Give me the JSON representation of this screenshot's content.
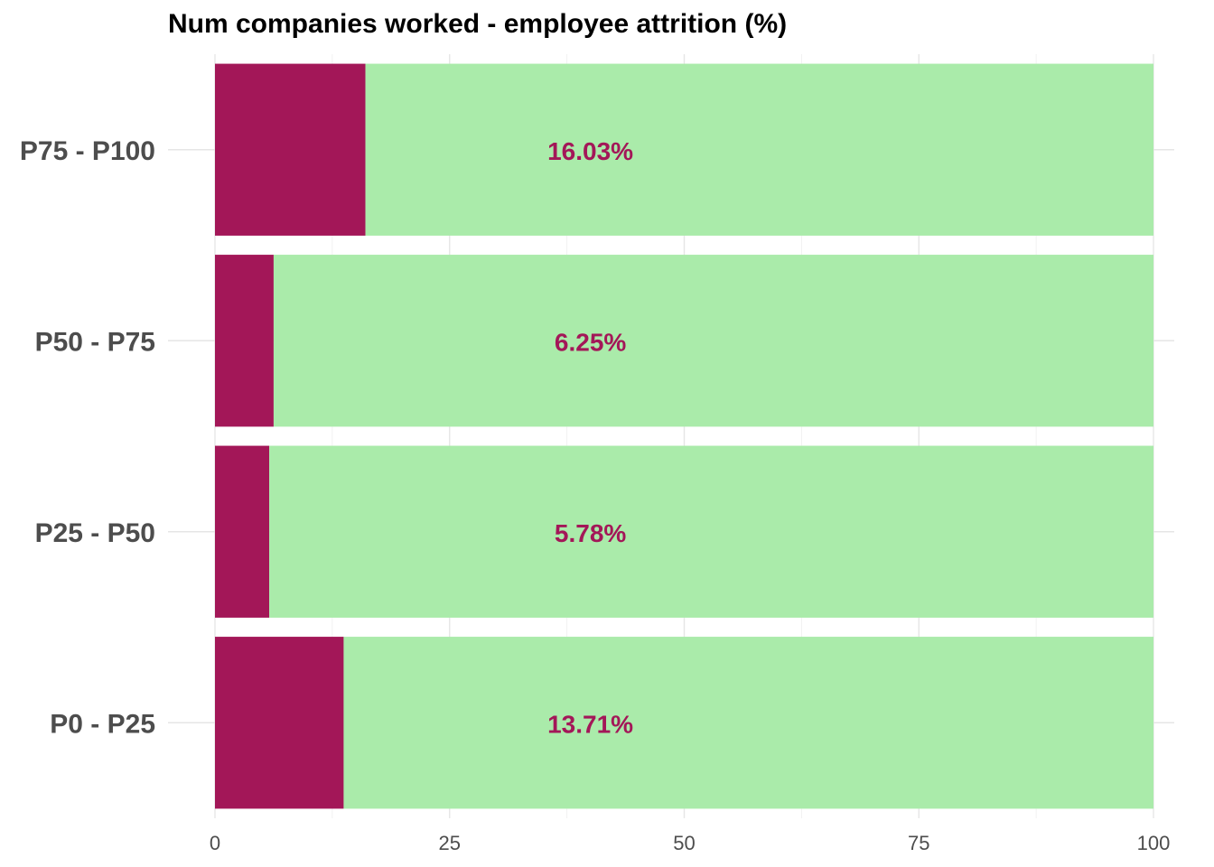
{
  "chart_data": {
    "type": "bar",
    "orientation": "horizontal",
    "stacked": true,
    "title": "Num companies worked - employee attrition (%)",
    "xlabel": "",
    "ylabel": "",
    "xlim": [
      0,
      100
    ],
    "x_ticks": [
      0,
      25,
      50,
      75,
      100
    ],
    "grid": true,
    "legend": "none",
    "categories": [
      "P0 - P25",
      "P25 - P50",
      "P50 - P75",
      "P75 - P100"
    ],
    "series": [
      {
        "values": [
          13.71,
          5.78,
          6.25,
          16.03
        ],
        "color": "#A31758"
      },
      {
        "values": [
          86.29,
          94.22,
          93.75,
          83.97
        ],
        "color": "#AAEBAA"
      }
    ],
    "data_labels": [
      "13.71%",
      "5.78%",
      "6.25%",
      "16.03%"
    ],
    "label_color": "#A31758"
  }
}
